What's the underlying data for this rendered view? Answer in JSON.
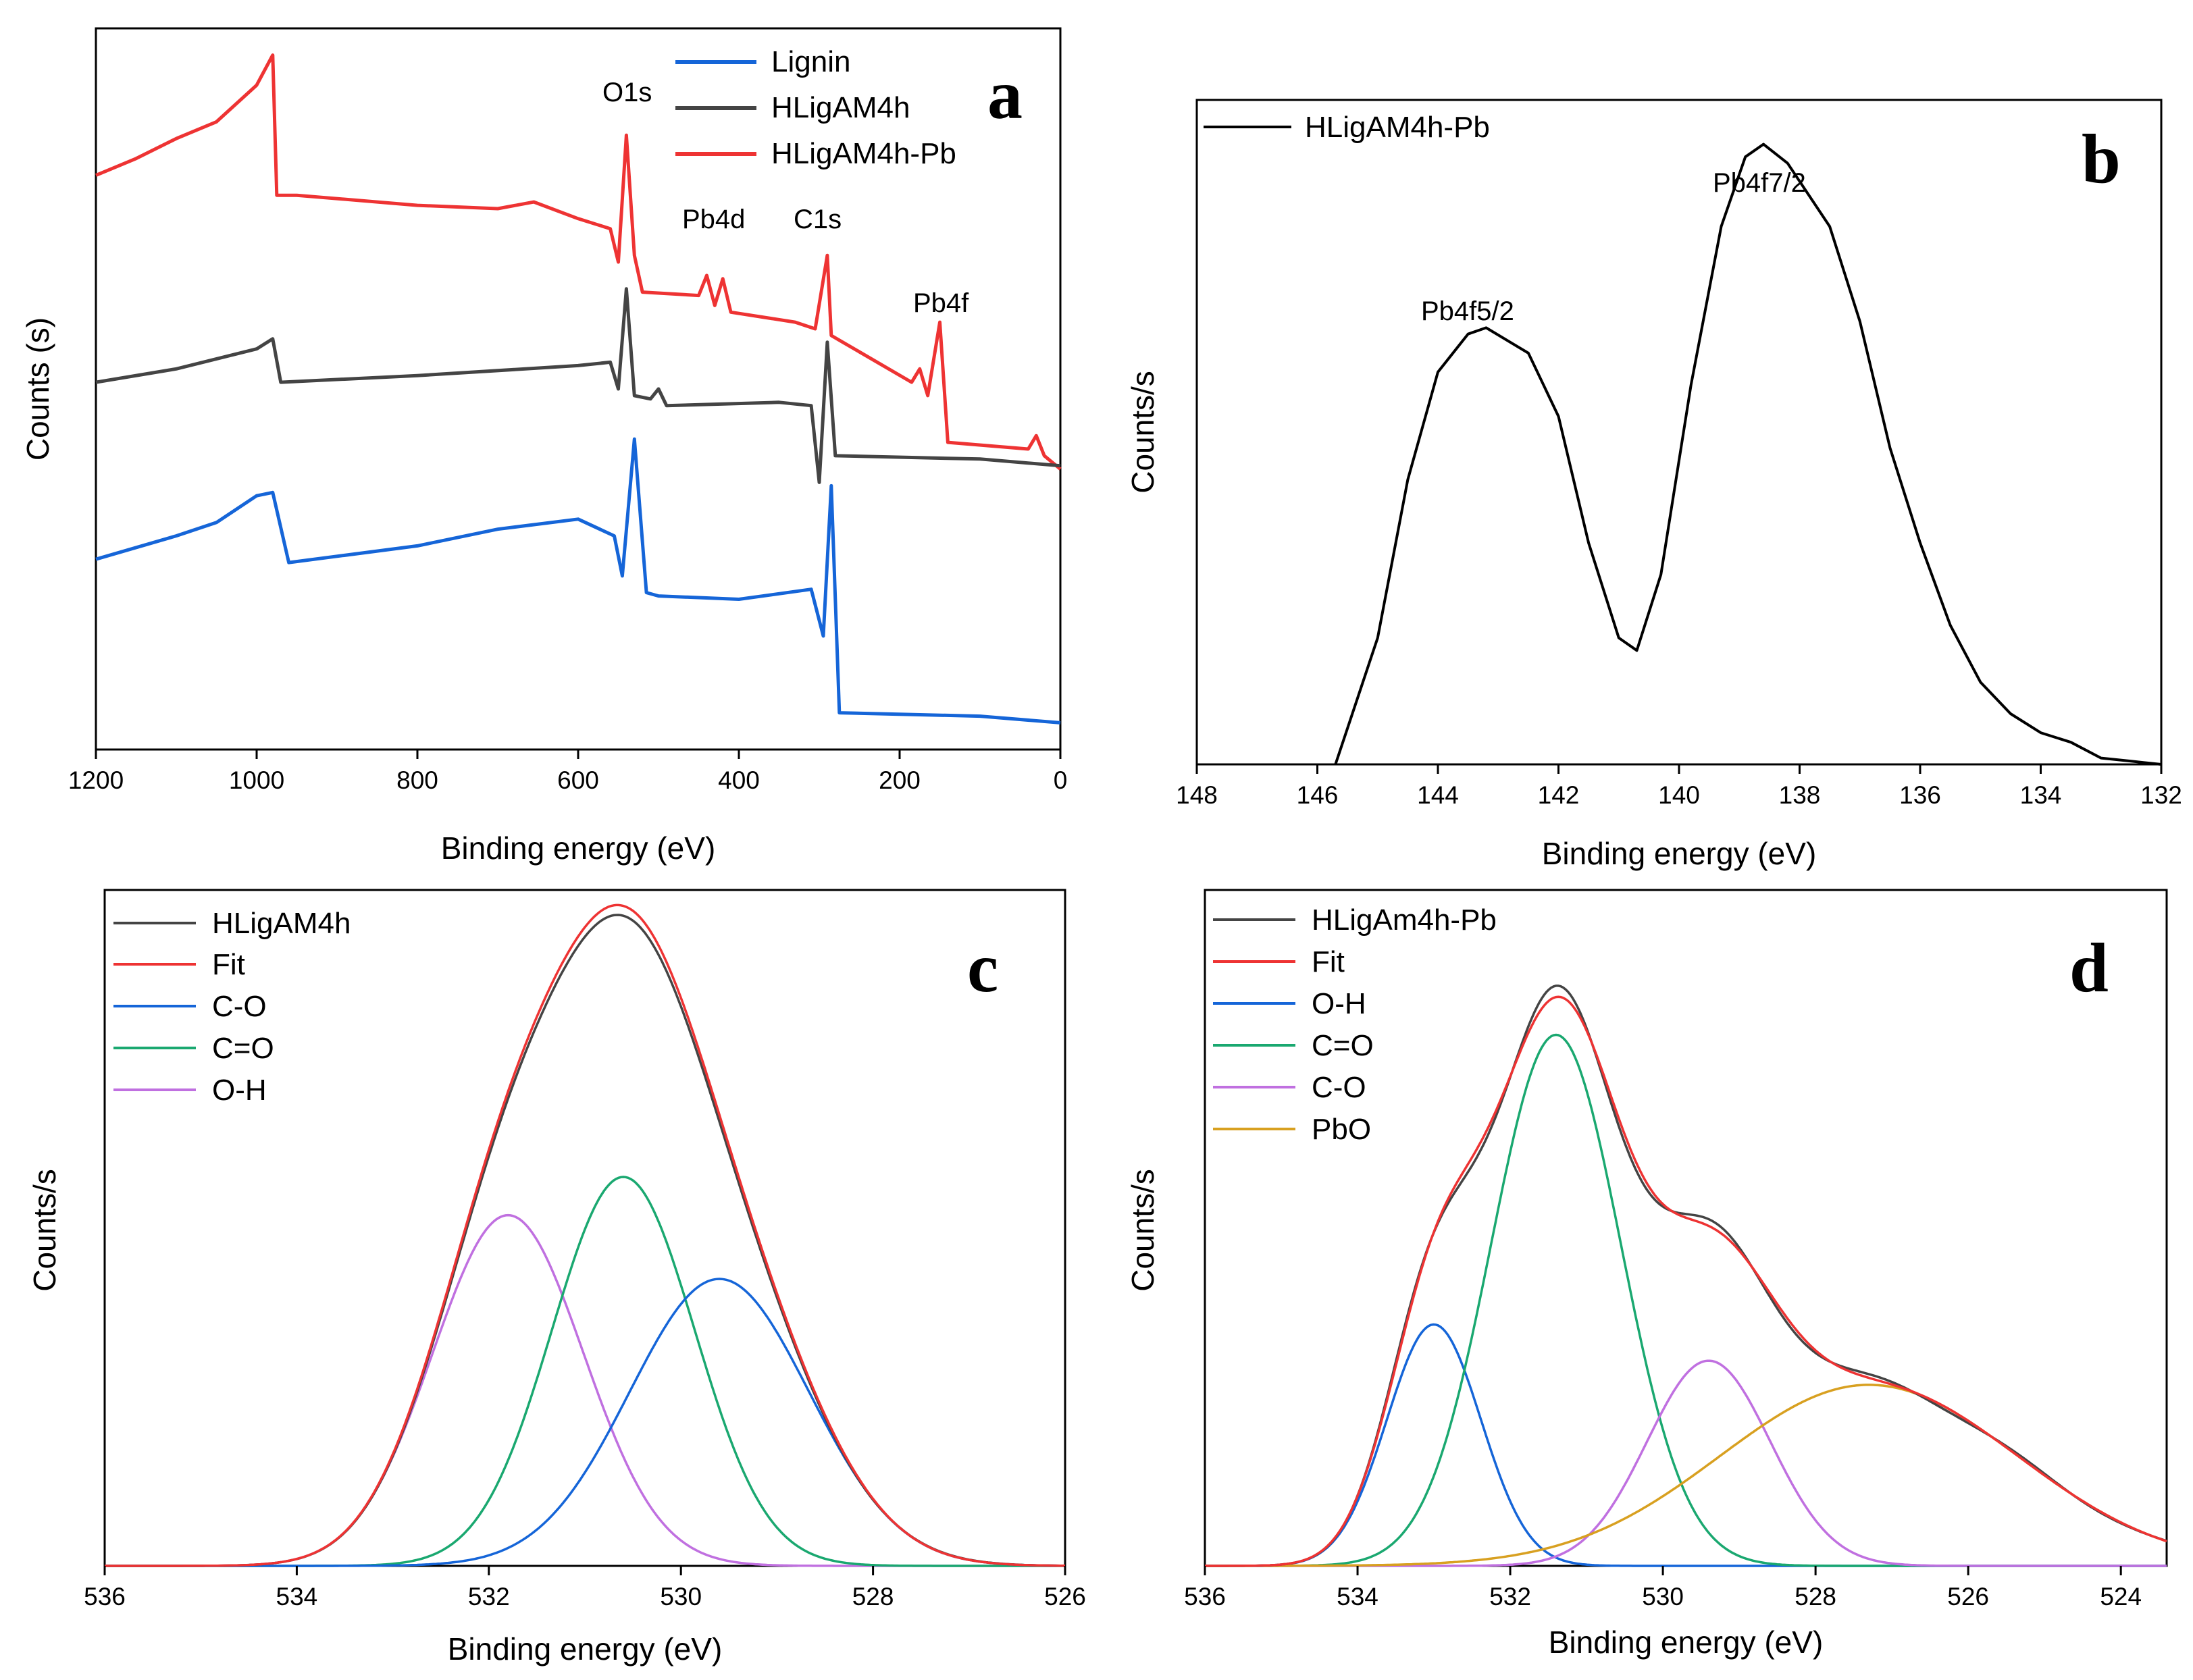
{
  "chart_data": [
    {
      "panel": "a",
      "type": "line",
      "xlabel": "Binding energy (eV)",
      "ylabel": "Counts (s)",
      "xlim": [
        1200,
        0
      ],
      "xticks": [
        1200,
        1000,
        800,
        600,
        400,
        200,
        0
      ],
      "legend": [
        "Lignin",
        "HLigAM4h",
        "HLigAM4h-Pb"
      ],
      "colors": {
        "Lignin": "#1565d8",
        "HLigAM4h": "#444444",
        "HLigAM4h-Pb": "#ee3333"
      },
      "annotations": [
        "O1s",
        "Pb4d",
        "C1s",
        "Pb4f"
      ],
      "series": [
        {
          "name": "HLigAM4h-Pb",
          "points": [
            [
              1200,
              0.82
            ],
            [
              1150,
              0.845
            ],
            [
              1100,
              0.875
            ],
            [
              1050,
              0.9
            ],
            [
              1000,
              0.955
            ],
            [
              980,
              1.0
            ],
            [
              975,
              0.79
            ],
            [
              950,
              0.79
            ],
            [
              800,
              0.775
            ],
            [
              700,
              0.77
            ],
            [
              655,
              0.78
            ],
            [
              600,
              0.755
            ],
            [
              560,
              0.74
            ],
            [
              550,
              0.69
            ],
            [
              540,
              0.88
            ],
            [
              530,
              0.7
            ],
            [
              520,
              0.645
            ],
            [
              450,
              0.64
            ],
            [
              440,
              0.67
            ],
            [
              430,
              0.625
            ],
            [
              420,
              0.665
            ],
            [
              410,
              0.615
            ],
            [
              330,
              0.6
            ],
            [
              305,
              0.59
            ],
            [
              290,
              0.7
            ],
            [
              285,
              0.58
            ],
            [
              185,
              0.51
            ],
            [
              175,
              0.53
            ],
            [
              165,
              0.49
            ],
            [
              150,
              0.6
            ],
            [
              140,
              0.42
            ],
            [
              40,
              0.41
            ],
            [
              30,
              0.43
            ],
            [
              20,
              0.4
            ],
            [
              0,
              0.38
            ]
          ]
        },
        {
          "name": "HLigAM4h",
          "points": [
            [
              1200,
              0.51
            ],
            [
              1100,
              0.53
            ],
            [
              1000,
              0.56
            ],
            [
              980,
              0.575
            ],
            [
              970,
              0.51
            ],
            [
              800,
              0.52
            ],
            [
              600,
              0.535
            ],
            [
              560,
              0.54
            ],
            [
              550,
              0.5
            ],
            [
              540,
              0.65
            ],
            [
              530,
              0.49
            ],
            [
              510,
              0.485
            ],
            [
              500,
              0.5
            ],
            [
              490,
              0.475
            ],
            [
              350,
              0.48
            ],
            [
              310,
              0.475
            ],
            [
              300,
              0.36
            ],
            [
              290,
              0.57
            ],
            [
              280,
              0.4
            ],
            [
              100,
              0.395
            ],
            [
              0,
              0.385
            ]
          ]
        },
        {
          "name": "Lignin",
          "points": [
            [
              1200,
              0.245
            ],
            [
              1100,
              0.28
            ],
            [
              1050,
              0.3
            ],
            [
              1000,
              0.34
            ],
            [
              980,
              0.345
            ],
            [
              960,
              0.24
            ],
            [
              800,
              0.265
            ],
            [
              700,
              0.29
            ],
            [
              600,
              0.305
            ],
            [
              555,
              0.28
            ],
            [
              545,
              0.22
            ],
            [
              530,
              0.425
            ],
            [
              515,
              0.195
            ],
            [
              500,
              0.19
            ],
            [
              400,
              0.185
            ],
            [
              310,
              0.2
            ],
            [
              295,
              0.13
            ],
            [
              285,
              0.355
            ],
            [
              275,
              0.015
            ],
            [
              100,
              0.01
            ],
            [
              0,
              0.0
            ]
          ]
        }
      ]
    },
    {
      "panel": "b",
      "type": "line",
      "xlabel": "Binding energy (eV)",
      "ylabel": "Counts/s",
      "xlim": [
        148,
        132
      ],
      "xticks": [
        148,
        146,
        144,
        142,
        140,
        138,
        136,
        134,
        132
      ],
      "legend": [
        "HLigAM4h-Pb"
      ],
      "colors": {
        "HLigAM4h-Pb": "#000000"
      },
      "annotations": [
        "Pb4f5/2",
        "Pb4f7/2"
      ],
      "series": [
        {
          "name": "HLigAM4h-Pb",
          "points": [
            [
              145.7,
              0.0
            ],
            [
              145.0,
              0.2
            ],
            [
              144.5,
              0.45
            ],
            [
              144.0,
              0.62
            ],
            [
              143.5,
              0.68
            ],
            [
              143.2,
              0.69
            ],
            [
              142.5,
              0.65
            ],
            [
              142.0,
              0.55
            ],
            [
              141.5,
              0.35
            ],
            [
              141.0,
              0.2
            ],
            [
              140.7,
              0.18
            ],
            [
              140.3,
              0.3
            ],
            [
              139.8,
              0.6
            ],
            [
              139.3,
              0.85
            ],
            [
              138.9,
              0.96
            ],
            [
              138.6,
              0.98
            ],
            [
              138.2,
              0.95
            ],
            [
              137.5,
              0.85
            ],
            [
              137.0,
              0.7
            ],
            [
              136.5,
              0.5
            ],
            [
              136.0,
              0.35
            ],
            [
              135.5,
              0.22
            ],
            [
              135.0,
              0.13
            ],
            [
              134.5,
              0.08
            ],
            [
              134.0,
              0.05
            ],
            [
              133.5,
              0.035
            ],
            [
              133.0,
              0.01
            ],
            [
              132.5,
              0.005
            ],
            [
              132.0,
              0.0
            ]
          ]
        }
      ]
    },
    {
      "panel": "c",
      "type": "line",
      "xlabel": "Binding energy (eV)",
      "ylabel": "Counts/s",
      "xlim": [
        536,
        526
      ],
      "xticks": [
        536,
        534,
        532,
        530,
        528,
        526
      ],
      "legend": [
        "HLigAM4h",
        "Fit",
        "C-O",
        "C=O",
        "O-H"
      ],
      "colors": {
        "HLigAM4h": "#444444",
        "Fit": "#ee3333",
        "C-O": "#1565d8",
        "C=O": "#1aa870",
        "O-H": "#c070e0"
      },
      "components": [
        {
          "name": "O-H",
          "center": 531.8,
          "height": 0.55,
          "fwhm": 1.85
        },
        {
          "name": "C=O",
          "center": 530.6,
          "height": 0.61,
          "fwhm": 1.75
        },
        {
          "name": "C-O",
          "center": 529.6,
          "height": 0.45,
          "fwhm": 2.2
        }
      ]
    },
    {
      "panel": "d",
      "type": "line",
      "xlabel": "Binding energy (eV)",
      "ylabel": "Counts/s",
      "xlim": [
        536,
        523.4
      ],
      "xticks": [
        536,
        534,
        532,
        530,
        528,
        526,
        524
      ],
      "legend": [
        "HLigAm4h-Pb",
        "Fit",
        "O-H",
        "C=O",
        "C-O",
        "PbO"
      ],
      "colors": {
        "HLigAm4h-Pb": "#444444",
        "Fit": "#ee3333",
        "O-H": "#1565d8",
        "C=O": "#1aa870",
        "C-O": "#c070e0",
        "PbO": "#d8a020"
      },
      "components": [
        {
          "name": "O-H",
          "center": 533.0,
          "height": 0.4,
          "fwhm": 1.45
        },
        {
          "name": "C=O",
          "center": 531.4,
          "height": 0.88,
          "fwhm": 2.0
        },
        {
          "name": "C-O",
          "center": 529.4,
          "height": 0.34,
          "fwhm": 1.9
        },
        {
          "name": "PbO",
          "center": 527.3,
          "height": 0.3,
          "fwhm": 4.6
        }
      ]
    }
  ],
  "panel_labels": {
    "a": "a",
    "b": "b",
    "c": "c",
    "d": "d"
  }
}
